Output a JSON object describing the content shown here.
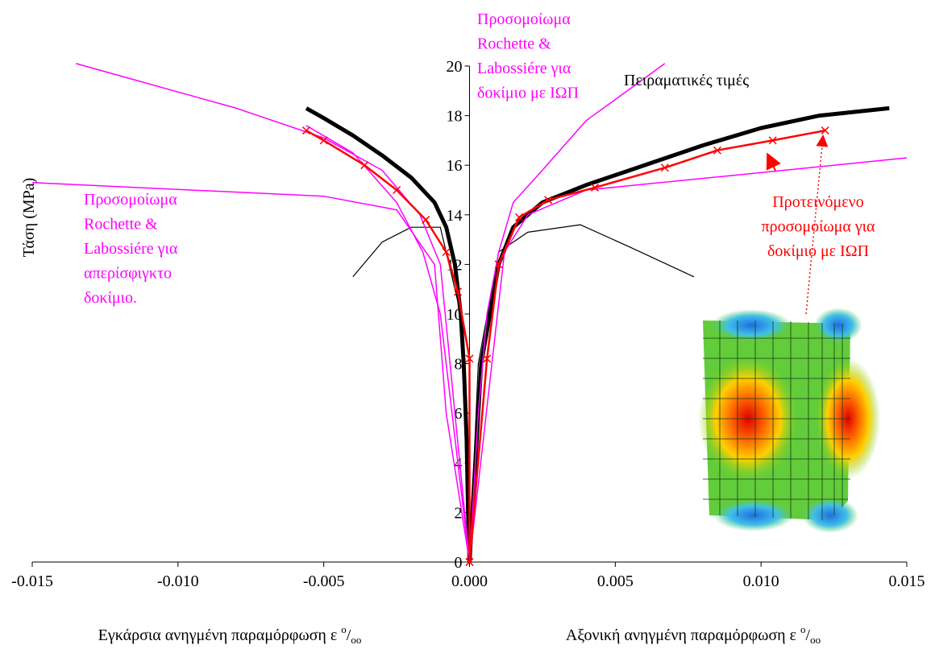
{
  "chart_data": {
    "type": "line",
    "y_label": "Τάση (MPa)",
    "x_labels": [
      {
        "text": "Εγκάρσια  ανηγμένη παραμόρφωση  ε ",
        "sup": "o",
        "mid": "/",
        "sub": "oo"
      },
      {
        "text": "Αξονική  ανηγμένη παραμόρφωση  ε ",
        "sup": "o",
        "mid": "/",
        "sub": "oo"
      }
    ],
    "xlim": [
      -0.015,
      0.015
    ],
    "xticks": [
      {
        "value": -0.015,
        "label": "-0.015"
      },
      {
        "value": -0.01,
        "label": "-0.010"
      },
      {
        "value": -0.005,
        "label": "-0.005"
      },
      {
        "value": 0,
        "label": "0.000"
      },
      {
        "value": 0.005,
        "label": "0.005"
      },
      {
        "value": 0.01,
        "label": "0.010"
      },
      {
        "value": 0.015,
        "label": "0.015"
      }
    ],
    "ylim": [
      0,
      20
    ],
    "yticks": [
      0,
      2,
      4,
      6,
      8,
      10,
      12,
      14,
      16,
      18,
      20
    ],
    "series": [
      {
        "color": "#000000",
        "line_width": 5,
        "x": [
          -0.0056,
          -0.005,
          -0.004,
          -0.003,
          -0.002,
          -0.0012,
          -0.0008,
          -0.0005,
          -0.0003,
          -0.0002,
          -0.0001,
          -5e-05,
          0
        ],
        "values": [
          18.3,
          17.9,
          17.2,
          16.4,
          15.5,
          14.5,
          13.5,
          12,
          10,
          8,
          5,
          2,
          0
        ]
      },
      {
        "color": "#000000",
        "line_width": 5,
        "x": [
          0,
          0.0002,
          0.0004,
          0.0007,
          0.001,
          0.0015,
          0.0025,
          0.004,
          0.006,
          0.008,
          0.01,
          0.012,
          0.0144
        ],
        "values": [
          0,
          4,
          8,
          10,
          12,
          13.5,
          14.5,
          15.2,
          16.0,
          16.8,
          17.5,
          18.0,
          18.3
        ]
      },
      {
        "color": "#000000",
        "line_width": 1.2,
        "x": [
          -0.004,
          -0.003,
          -0.002,
          -0.001,
          -0.0003,
          0,
          0.0003,
          0.001,
          0.002,
          0.0038,
          0.0055,
          0.0077
        ],
        "values": [
          11.5,
          12.9,
          13.5,
          13.5,
          10,
          0,
          8,
          12.5,
          13.3,
          13.6,
          12.7,
          11.5
        ]
      },
      {
        "color": "#ff00ff",
        "line_width": 1.5,
        "x": [
          0,
          -0.0005,
          -0.001,
          -0.0017,
          -0.003,
          -0.005,
          -0.008,
          -0.0135
        ],
        "values": [
          0,
          6,
          12,
          14,
          15.8,
          17.1,
          18.3,
          20.1
        ]
      },
      {
        "color": "#ff00ff",
        "line_width": 1.5,
        "x": [
          0,
          -0.0006,
          -0.001,
          -0.0016,
          -0.0025,
          -0.004,
          -0.0056
        ],
        "values": [
          0,
          6,
          10,
          12.5,
          14.5,
          16.5,
          17.6
        ]
      },
      {
        "color": "#ff00ff",
        "line_width": 1.5,
        "x": [
          0,
          0.0003,
          0.0006,
          0.001,
          0.0015,
          0.0025,
          0.004,
          0.0067
        ],
        "values": [
          0,
          6,
          10,
          12.5,
          14.5,
          15.8,
          17.8,
          20.1
        ]
      },
      {
        "color": "#ff00ff",
        "line_width": 1.5,
        "x": [
          -0.015,
          -0.005,
          -0.0025,
          -0.0012,
          -0.0008,
          0,
          0.0012,
          0.002,
          0.004,
          0.01,
          0.015
        ],
        "values": [
          15.3,
          14.75,
          14.2,
          12,
          6,
          0,
          12.5,
          14.0,
          15.0,
          15.7,
          16.3
        ]
      },
      {
        "color": "#ff0000",
        "line_width": 2.5,
        "marker": "x",
        "x": [
          0,
          0,
          -0.0004,
          -0.0008,
          -0.0015,
          -0.0025,
          -0.0036,
          -0.005,
          -0.0056
        ],
        "values": [
          0,
          8.2,
          10.9,
          12.5,
          13.8,
          15.0,
          16.0,
          17.0,
          17.4
        ]
      },
      {
        "color": "#ff0000",
        "line_width": 2.5,
        "marker": "x",
        "x": [
          0,
          0.0006,
          0.001,
          0.0017,
          0.0027,
          0.0043,
          0.0067,
          0.0085,
          0.0104,
          0.0122
        ],
        "values": [
          0,
          8.2,
          12,
          13.9,
          14.6,
          15.1,
          15.9,
          16.6,
          17.0,
          17.4
        ]
      }
    ],
    "annotations": [
      {
        "color": "#ff00ff",
        "lines": [
          "Προσομοίωμα",
          "Rochette &",
          "Labossiére για",
          "δοκίμιο με ΙΩΠ"
        ]
      },
      {
        "color": "#ff00ff",
        "lines": [
          "Προσομοίωμα",
          "Rochette &",
          "Labossiére για",
          "απερίσφιγκτο",
          "δοκίμιο."
        ]
      },
      {
        "color": "#000000",
        "lines": [
          "Πειραματικές τιμές"
        ]
      },
      {
        "color": "#ff0000",
        "lines": [
          "Προτεινόμενο",
          "προσομοίωμα για",
          "δοκίμιο με ΙΩΠ"
        ]
      }
    ]
  }
}
